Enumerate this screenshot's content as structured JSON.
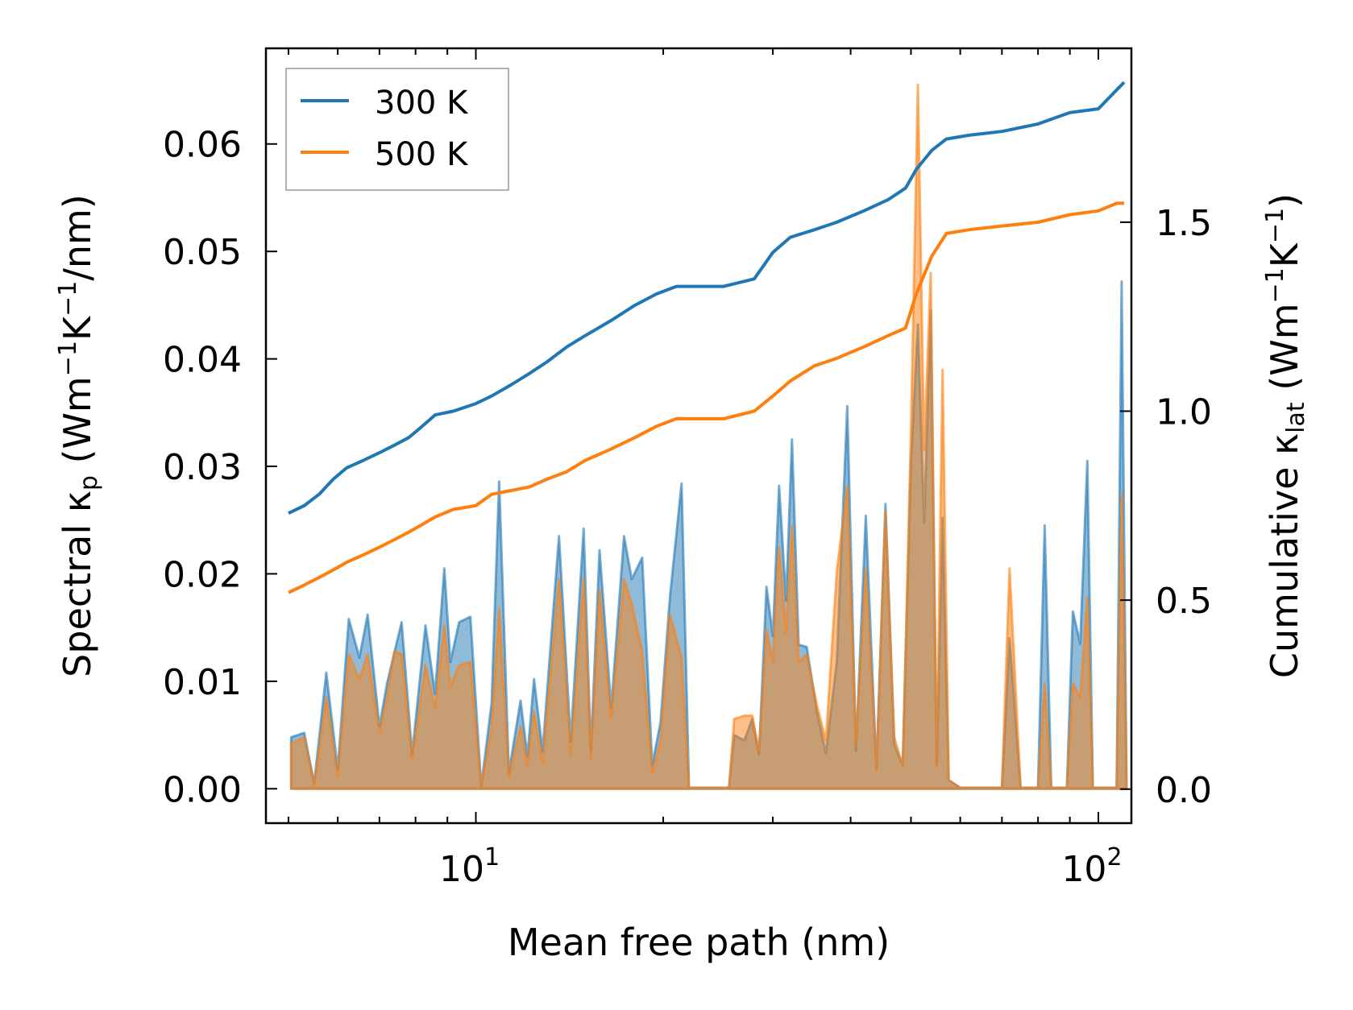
{
  "chart_data": {
    "type": "line",
    "xscale": "log",
    "xlabel": "Mean free path (nm)",
    "ylabel_left": "Spectral κ",
    "ylabel_left_sub": "p",
    "ylabel_left_unit": " (Wm",
    "ylabel_left_unit_sup1": "−1",
    "ylabel_left_unit_mid": "K",
    "ylabel_left_unit_sup2": "−1",
    "ylabel_left_unit_end": "/nm)",
    "ylabel_right": "Cumulative κ",
    "ylabel_right_sub": "lat",
    "ylabel_right_unit": " (Wm",
    "ylabel_right_unit_sup1": "−1",
    "ylabel_right_unit_mid": "K",
    "ylabel_right_unit_sup2": "−1",
    "ylabel_right_unit_end": ")",
    "xlim": [
      4.6,
      113
    ],
    "ylim_left": [
      -0.0032,
      0.0689
    ],
    "ylim_right": [
      -0.09,
      1.96
    ],
    "x_ticks": [
      {
        "base": "10",
        "exp": "1",
        "value": 10
      },
      {
        "base": "10",
        "exp": "2",
        "value": 100
      }
    ],
    "y_ticks_left": [
      "0.00",
      "0.01",
      "0.02",
      "0.03",
      "0.04",
      "0.05",
      "0.06"
    ],
    "y_ticks_right": [
      "0.0",
      "0.5",
      "1.0",
      "1.5"
    ],
    "legend": {
      "location": "upper-left",
      "entries": [
        "300 K",
        "500 K"
      ]
    },
    "series": [
      {
        "name": "300 K",
        "color": "#1f77b4",
        "cumulative_points": [
          [
            5.0,
            0.73
          ],
          [
            5.3,
            0.75
          ],
          [
            5.6,
            0.78
          ],
          [
            5.9,
            0.82
          ],
          [
            6.2,
            0.85
          ],
          [
            6.6,
            0.87
          ],
          [
            7.0,
            0.89
          ],
          [
            7.4,
            0.91
          ],
          [
            7.8,
            0.93
          ],
          [
            8.2,
            0.96
          ],
          [
            8.6,
            0.99
          ],
          [
            9.2,
            1.0
          ],
          [
            10.0,
            1.02
          ],
          [
            10.6,
            1.04
          ],
          [
            11.4,
            1.07
          ],
          [
            12.2,
            1.1
          ],
          [
            13.0,
            1.13
          ],
          [
            14.0,
            1.17
          ],
          [
            15.0,
            1.2
          ],
          [
            16.5,
            1.24
          ],
          [
            18.0,
            1.28
          ],
          [
            19.5,
            1.31
          ],
          [
            21.0,
            1.33
          ],
          [
            23.0,
            1.33
          ],
          [
            25.0,
            1.33
          ],
          [
            28.0,
            1.35
          ],
          [
            30.0,
            1.42
          ],
          [
            32.0,
            1.46
          ],
          [
            35.0,
            1.48
          ],
          [
            38.0,
            1.5
          ],
          [
            42.0,
            1.53
          ],
          [
            46.0,
            1.56
          ],
          [
            49.0,
            1.59
          ],
          [
            51.0,
            1.64
          ],
          [
            54.0,
            1.69
          ],
          [
            57.0,
            1.72
          ],
          [
            62.0,
            1.73
          ],
          [
            70.0,
            1.74
          ],
          [
            80.0,
            1.76
          ],
          [
            90.0,
            1.79
          ],
          [
            100.0,
            1.8
          ],
          [
            107.0,
            1.85
          ],
          [
            110.0,
            1.87
          ]
        ],
        "spectral_peaks": [
          [
            5.05,
            0.0048
          ],
          [
            5.3,
            0.0052
          ],
          [
            5.5,
            0.0005
          ],
          [
            5.75,
            0.0108
          ],
          [
            6.0,
            0.0018
          ],
          [
            6.25,
            0.0158
          ],
          [
            6.5,
            0.0122
          ],
          [
            6.7,
            0.0162
          ],
          [
            7.0,
            0.0058
          ],
          [
            7.2,
            0.0098
          ],
          [
            7.6,
            0.0155
          ],
          [
            7.9,
            0.0032
          ],
          [
            8.3,
            0.0152
          ],
          [
            8.6,
            0.0088
          ],
          [
            8.9,
            0.0205
          ],
          [
            9.1,
            0.0118
          ],
          [
            9.4,
            0.0155
          ],
          [
            9.8,
            0.016
          ],
          [
            10.2,
            0.0002
          ],
          [
            10.6,
            0.008
          ],
          [
            10.9,
            0.0286
          ],
          [
            11.3,
            0.0015
          ],
          [
            11.8,
            0.0082
          ],
          [
            12.1,
            0.003
          ],
          [
            12.4,
            0.0102
          ],
          [
            12.8,
            0.0035
          ],
          [
            13.6,
            0.0235
          ],
          [
            14.2,
            0.0044
          ],
          [
            14.9,
            0.0242
          ],
          [
            15.3,
            0.0035
          ],
          [
            15.8,
            0.0222
          ],
          [
            16.5,
            0.0075
          ],
          [
            17.3,
            0.0235
          ],
          [
            17.8,
            0.0195
          ],
          [
            18.5,
            0.0215
          ],
          [
            19.2,
            0.0022
          ],
          [
            19.8,
            0.0062
          ],
          [
            20.5,
            0.0178
          ],
          [
            21.4,
            0.0284
          ],
          [
            22.0,
            0.0001
          ],
          [
            25.5,
            0.0001
          ],
          [
            26.0,
            0.005
          ],
          [
            27.0,
            0.0045
          ],
          [
            27.8,
            0.0065
          ],
          [
            28.5,
            0.0032
          ],
          [
            29.3,
            0.0188
          ],
          [
            30.0,
            0.0142
          ],
          [
            30.7,
            0.0282
          ],
          [
            31.5,
            0.0175
          ],
          [
            32.2,
            0.0325
          ],
          [
            33.0,
            0.0134
          ],
          [
            34.0,
            0.0132
          ],
          [
            35.3,
            0.0072
          ],
          [
            36.5,
            0.0033
          ],
          [
            38.0,
            0.0118
          ],
          [
            39.5,
            0.0356
          ],
          [
            40.8,
            0.0035
          ],
          [
            42.3,
            0.0254
          ],
          [
            44.0,
            0.0018
          ],
          [
            45.5,
            0.0265
          ],
          [
            47.0,
            0.0041
          ],
          [
            48.5,
            0.0022
          ],
          [
            50.0,
            0.0305
          ],
          [
            51.3,
            0.0432
          ],
          [
            52.5,
            0.0248
          ],
          [
            53.8,
            0.0445
          ],
          [
            55.0,
            0.0022
          ],
          [
            56.2,
            0.0252
          ],
          [
            57.5,
            0.0008
          ],
          [
            60.0,
            0.0001
          ],
          [
            70.0,
            0.0001
          ],
          [
            72.0,
            0.014
          ],
          [
            75.0,
            0.0001
          ],
          [
            80.0,
            0.0001
          ],
          [
            82.0,
            0.0245
          ],
          [
            84.0,
            0.0001
          ],
          [
            89.0,
            0.0001
          ],
          [
            91.0,
            0.0165
          ],
          [
            93.5,
            0.0135
          ],
          [
            96.0,
            0.0305
          ],
          [
            98.0,
            0.0001
          ],
          [
            107.0,
            0.0001
          ],
          [
            109.0,
            0.0472
          ],
          [
            111.0,
            0.0003
          ]
        ]
      },
      {
        "name": "500 K",
        "color": "#ff7f0e",
        "cumulative_points": [
          [
            5.0,
            0.52
          ],
          [
            5.3,
            0.54
          ],
          [
            5.6,
            0.56
          ],
          [
            5.9,
            0.58
          ],
          [
            6.2,
            0.6
          ],
          [
            6.6,
            0.62
          ],
          [
            7.0,
            0.64
          ],
          [
            7.4,
            0.66
          ],
          [
            7.8,
            0.68
          ],
          [
            8.2,
            0.7
          ],
          [
            8.6,
            0.72
          ],
          [
            9.2,
            0.74
          ],
          [
            10.0,
            0.75
          ],
          [
            10.6,
            0.78
          ],
          [
            11.4,
            0.79
          ],
          [
            12.2,
            0.8
          ],
          [
            13.0,
            0.82
          ],
          [
            14.0,
            0.84
          ],
          [
            15.0,
            0.87
          ],
          [
            16.5,
            0.9
          ],
          [
            18.0,
            0.93
          ],
          [
            19.5,
            0.96
          ],
          [
            21.0,
            0.98
          ],
          [
            23.0,
            0.98
          ],
          [
            25.0,
            0.98
          ],
          [
            28.0,
            1.0
          ],
          [
            30.0,
            1.04
          ],
          [
            32.0,
            1.08
          ],
          [
            35.0,
            1.12
          ],
          [
            38.0,
            1.14
          ],
          [
            42.0,
            1.17
          ],
          [
            46.0,
            1.2
          ],
          [
            49.0,
            1.22
          ],
          [
            51.0,
            1.31
          ],
          [
            54.0,
            1.41
          ],
          [
            57.0,
            1.47
          ],
          [
            62.0,
            1.48
          ],
          [
            70.0,
            1.49
          ],
          [
            80.0,
            1.5
          ],
          [
            90.0,
            1.52
          ],
          [
            100.0,
            1.53
          ],
          [
            107.0,
            1.55
          ],
          [
            110.0,
            1.55
          ]
        ],
        "spectral_peaks": [
          [
            5.05,
            0.0042
          ],
          [
            5.3,
            0.0048
          ],
          [
            5.5,
            0.0003
          ],
          [
            5.75,
            0.0085
          ],
          [
            6.0,
            0.0012
          ],
          [
            6.25,
            0.0125
          ],
          [
            6.5,
            0.0102
          ],
          [
            6.7,
            0.0125
          ],
          [
            7.0,
            0.0052
          ],
          [
            7.2,
            0.0085
          ],
          [
            7.4,
            0.0128
          ],
          [
            7.6,
            0.0125
          ],
          [
            7.9,
            0.0028
          ],
          [
            8.3,
            0.0115
          ],
          [
            8.6,
            0.0075
          ],
          [
            8.9,
            0.0152
          ],
          [
            9.1,
            0.0095
          ],
          [
            9.4,
            0.0115
          ],
          [
            9.8,
            0.0118
          ],
          [
            10.2,
            0.0001
          ],
          [
            10.6,
            0.0058
          ],
          [
            10.9,
            0.0168
          ],
          [
            11.3,
            0.0012
          ],
          [
            11.8,
            0.0058
          ],
          [
            12.1,
            0.0022
          ],
          [
            12.4,
            0.0072
          ],
          [
            12.8,
            0.0025
          ],
          [
            13.6,
            0.0195
          ],
          [
            14.2,
            0.0032
          ],
          [
            14.9,
            0.0195
          ],
          [
            15.3,
            0.0028
          ],
          [
            15.8,
            0.0185
          ],
          [
            16.5,
            0.0065
          ],
          [
            17.3,
            0.0195
          ],
          [
            17.8,
            0.0172
          ],
          [
            18.5,
            0.0128
          ],
          [
            19.2,
            0.0015
          ],
          [
            19.8,
            0.0045
          ],
          [
            20.5,
            0.0162
          ],
          [
            21.4,
            0.0122
          ],
          [
            22.0,
            0.0001
          ],
          [
            25.5,
            0.0001
          ],
          [
            26.0,
            0.0065
          ],
          [
            27.0,
            0.0068
          ],
          [
            27.8,
            0.0068
          ],
          [
            28.5,
            0.0035
          ],
          [
            29.3,
            0.0148
          ],
          [
            30.0,
            0.0118
          ],
          [
            30.7,
            0.0225
          ],
          [
            31.5,
            0.0145
          ],
          [
            32.2,
            0.0245
          ],
          [
            33.0,
            0.0118
          ],
          [
            34.0,
            0.0125
          ],
          [
            35.3,
            0.0078
          ],
          [
            36.5,
            0.0045
          ],
          [
            38.0,
            0.0202
          ],
          [
            39.5,
            0.0282
          ],
          [
            40.8,
            0.0042
          ],
          [
            42.3,
            0.0205
          ],
          [
            44.0,
            0.0018
          ],
          [
            45.5,
            0.0258
          ],
          [
            47.0,
            0.0048
          ],
          [
            48.5,
            0.0022
          ],
          [
            50.0,
            0.0335
          ],
          [
            51.3,
            0.0655
          ],
          [
            52.5,
            0.0315
          ],
          [
            53.8,
            0.048
          ],
          [
            55.0,
            0.0022
          ],
          [
            56.2,
            0.039
          ],
          [
            57.5,
            0.0008
          ],
          [
            60.0,
            0.0001
          ],
          [
            70.0,
            0.0001
          ],
          [
            72.0,
            0.0205
          ],
          [
            75.0,
            0.0001
          ],
          [
            80.0,
            0.0001
          ],
          [
            82.0,
            0.0098
          ],
          [
            84.0,
            0.0001
          ],
          [
            89.0,
            0.0001
          ],
          [
            91.0,
            0.0098
          ],
          [
            93.5,
            0.0085
          ],
          [
            96.0,
            0.0178
          ],
          [
            98.0,
            0.0001
          ],
          [
            107.0,
            0.0001
          ],
          [
            109.0,
            0.0275
          ],
          [
            111.0,
            0.0002
          ]
        ]
      }
    ]
  }
}
